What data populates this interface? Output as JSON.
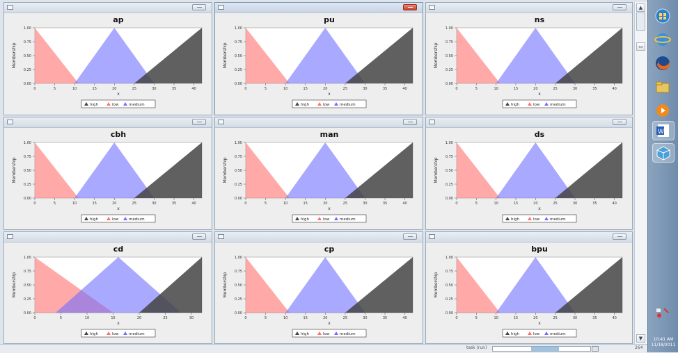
{
  "colors": {
    "high": "#444444",
    "low": "#ff6f6f",
    "medium": "#6f6fff"
  },
  "panels": [
    {
      "title": "ap",
      "ylabel": "Membership",
      "xlabel": "x",
      "yticks": [
        "1.00",
        "0.75",
        "0.50",
        "0.25",
        "0.00"
      ],
      "xticks": [
        "0",
        "5",
        "10",
        "15",
        "20",
        "25",
        "30",
        "35",
        "40"
      ],
      "xmax": 42,
      "legend": [
        "high",
        "low",
        "medium"
      ],
      "chart_data": {
        "type": "area",
        "series": [
          {
            "name": "low",
            "x": [
              0,
              11
            ],
            "y": [
              1,
              0
            ]
          },
          {
            "name": "medium",
            "x": [
              10,
              20,
              30
            ],
            "y": [
              0,
              1,
              0
            ]
          },
          {
            "name": "high",
            "x": [
              25,
              42
            ],
            "y": [
              0,
              1
            ]
          }
        ],
        "xlim": [
          0,
          42
        ],
        "ylim": [
          0,
          1
        ]
      }
    },
    {
      "title": "pu",
      "ylabel": "Membership",
      "xlabel": "x",
      "yticks": [
        "1.00",
        "0.75",
        "0.50",
        "0.25",
        "0.00"
      ],
      "xticks": [
        "0",
        "5",
        "10",
        "15",
        "20",
        "25",
        "30",
        "35",
        "40"
      ],
      "xmax": 42,
      "legend": [
        "high",
        "low",
        "medium"
      ],
      "chart_data": {
        "type": "area",
        "series": [
          {
            "name": "low",
            "x": [
              0,
              11
            ],
            "y": [
              1,
              0
            ]
          },
          {
            "name": "medium",
            "x": [
              10,
              20,
              30
            ],
            "y": [
              0,
              1,
              0
            ]
          },
          {
            "name": "high",
            "x": [
              25,
              42
            ],
            "y": [
              0,
              1
            ]
          }
        ],
        "xlim": [
          0,
          42
        ],
        "ylim": [
          0,
          1
        ]
      }
    },
    {
      "title": "ns",
      "ylabel": "Membership",
      "xlabel": "x",
      "yticks": [
        "1.00",
        "0.75",
        "0.50",
        "0.25",
        "0.00"
      ],
      "xticks": [
        "0",
        "5",
        "10",
        "15",
        "20",
        "25",
        "30",
        "35",
        "40"
      ],
      "xmax": 42,
      "legend": [
        "high",
        "low",
        "medium"
      ],
      "chart_data": {
        "type": "area",
        "series": [
          {
            "name": "low",
            "x": [
              0,
              11
            ],
            "y": [
              1,
              0
            ]
          },
          {
            "name": "medium",
            "x": [
              10,
              20,
              30
            ],
            "y": [
              0,
              1,
              0
            ]
          },
          {
            "name": "high",
            "x": [
              25,
              42
            ],
            "y": [
              0,
              1
            ]
          }
        ],
        "xlim": [
          0,
          42
        ],
        "ylim": [
          0,
          1
        ]
      }
    },
    {
      "title": "cbh",
      "ylabel": "Membership",
      "xlabel": "x",
      "yticks": [
        "1.00",
        "0.75",
        "0.50",
        "0.25",
        "0.00"
      ],
      "xticks": [
        "0",
        "5",
        "10",
        "15",
        "20",
        "25",
        "30",
        "35",
        "40"
      ],
      "xmax": 42,
      "legend": [
        "high",
        "low",
        "medium"
      ],
      "chart_data": {
        "type": "area",
        "series": [
          {
            "name": "low",
            "x": [
              0,
              11
            ],
            "y": [
              1,
              0
            ]
          },
          {
            "name": "medium",
            "x": [
              10,
              20,
              30
            ],
            "y": [
              0,
              1,
              0
            ]
          },
          {
            "name": "high",
            "x": [
              25,
              42
            ],
            "y": [
              0,
              1
            ]
          }
        ],
        "xlim": [
          0,
          42
        ],
        "ylim": [
          0,
          1
        ]
      }
    },
    {
      "title": "man",
      "ylabel": "Membership",
      "xlabel": "x",
      "yticks": [
        "1.00",
        "0.75",
        "0.50",
        "0.25",
        "0.00"
      ],
      "xticks": [
        "0",
        "5",
        "10",
        "15",
        "20",
        "25",
        "30",
        "35",
        "40"
      ],
      "xmax": 42,
      "legend": [
        "high",
        "low",
        "medium"
      ],
      "chart_data": {
        "type": "area",
        "series": [
          {
            "name": "low",
            "x": [
              0,
              11
            ],
            "y": [
              1,
              0
            ]
          },
          {
            "name": "medium",
            "x": [
              10,
              20,
              30
            ],
            "y": [
              0,
              1,
              0
            ]
          },
          {
            "name": "high",
            "x": [
              25,
              42
            ],
            "y": [
              0,
              1
            ]
          }
        ],
        "xlim": [
          0,
          42
        ],
        "ylim": [
          0,
          1
        ]
      }
    },
    {
      "title": "ds",
      "ylabel": "Membership",
      "xlabel": "x",
      "yticks": [
        "1.00",
        "0.75",
        "0.50",
        "0.25",
        "0.00"
      ],
      "xticks": [
        "0",
        "5",
        "10",
        "15",
        "20",
        "25",
        "30",
        "35",
        "40"
      ],
      "xmax": 42,
      "legend": [
        "high",
        "low",
        "medium"
      ],
      "chart_data": {
        "type": "area",
        "series": [
          {
            "name": "low",
            "x": [
              0,
              11
            ],
            "y": [
              1,
              0
            ]
          },
          {
            "name": "medium",
            "x": [
              10,
              20,
              30
            ],
            "y": [
              0,
              1,
              0
            ]
          },
          {
            "name": "high",
            "x": [
              25,
              42
            ],
            "y": [
              0,
              1
            ]
          }
        ],
        "xlim": [
          0,
          42
        ],
        "ylim": [
          0,
          1
        ]
      }
    },
    {
      "title": "cd",
      "ylabel": "Membership",
      "xlabel": "x",
      "yticks": [
        "1.00",
        "0.75",
        "0.50",
        "0.25",
        "0.00"
      ],
      "xticks": [
        "0",
        "5",
        "10",
        "15",
        "20",
        "25",
        "30"
      ],
      "xmax": 32,
      "legend": [
        "high",
        "low",
        "medium"
      ],
      "chart_data": {
        "type": "area",
        "series": [
          {
            "name": "low",
            "x": [
              0,
              15
            ],
            "y": [
              1,
              0
            ]
          },
          {
            "name": "medium",
            "x": [
              4,
              16,
              28
            ],
            "y": [
              0,
              1,
              0
            ]
          },
          {
            "name": "high",
            "x": [
              20,
              32
            ],
            "y": [
              0,
              1
            ]
          }
        ],
        "xlim": [
          0,
          32
        ],
        "ylim": [
          0,
          1
        ]
      }
    },
    {
      "title": "cp",
      "ylabel": "Membership",
      "xlabel": "x",
      "yticks": [
        "1.00",
        "0.75",
        "0.50",
        "0.25",
        "0.00"
      ],
      "xticks": [
        "0",
        "5",
        "10",
        "15",
        "20",
        "25",
        "30",
        "35",
        "40"
      ],
      "xmax": 42,
      "legend": [
        "high",
        "low",
        "medium"
      ],
      "chart_data": {
        "type": "area",
        "series": [
          {
            "name": "low",
            "x": [
              0,
              11
            ],
            "y": [
              1,
              0
            ]
          },
          {
            "name": "medium",
            "x": [
              10,
              20,
              30
            ],
            "y": [
              0,
              1,
              0
            ]
          },
          {
            "name": "high",
            "x": [
              25,
              42
            ],
            "y": [
              0,
              1
            ]
          }
        ],
        "xlim": [
          0,
          42
        ],
        "ylim": [
          0,
          1
        ]
      }
    },
    {
      "title": "bpu",
      "ylabel": "Membership",
      "xlabel": "x",
      "yticks": [
        "1.00",
        "0.75",
        "0.50",
        "0.25",
        "0.00"
      ],
      "xticks": [
        "0",
        "5",
        "10",
        "15",
        "20",
        "25",
        "30",
        "35",
        "40"
      ],
      "xmax": 42,
      "legend": [
        "high",
        "low",
        "medium"
      ],
      "chart_data": {
        "type": "area",
        "series": [
          {
            "name": "low",
            "x": [
              0,
              11
            ],
            "y": [
              1,
              0
            ]
          },
          {
            "name": "medium",
            "x": [
              10,
              20,
              30
            ],
            "y": [
              0,
              1,
              0
            ]
          },
          {
            "name": "high",
            "x": [
              25,
              42
            ],
            "y": [
              0,
              1
            ]
          }
        ],
        "xlim": [
          0,
          42
        ],
        "ylim": [
          0,
          1
        ]
      }
    }
  ],
  "statusbar": {
    "label": "task (run)",
    "right": "264"
  },
  "taskbar": {
    "clock_time": "10:41 AM",
    "clock_date": "11/18/2011"
  }
}
